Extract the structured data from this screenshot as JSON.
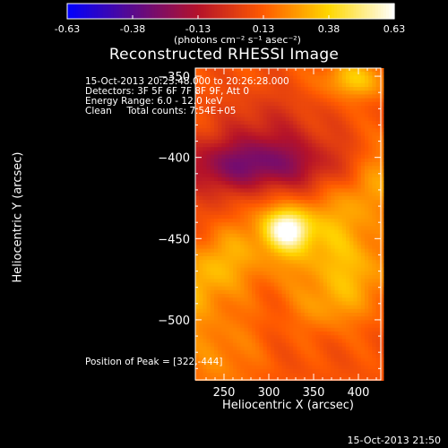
{
  "chart_data": {
    "type": "heatmap",
    "title": "Reconstructed RHESSI Image",
    "xlabel": "Heliocentric X (arcsec)",
    "ylabel": "Heliocentric Y (arcsec)",
    "xlim": [
      218,
      425
    ],
    "ylim": [
      -537,
      -345
    ],
    "x_ticks": [
      250,
      300,
      350,
      400
    ],
    "y_ticks": [
      -350,
      -400,
      -450,
      -500
    ],
    "colorbar": {
      "range": [
        -0.63,
        0.63
      ],
      "ticks": [
        "-0.63",
        "-0.38",
        "-0.13",
        "0.13",
        "0.38",
        "0.63"
      ],
      "units": "(photons cm⁻² s⁻¹ asec⁻²)",
      "colormap": [
        "#0000ff",
        "#5a0a8c",
        "#b4122a",
        "#ff5a00",
        "#ffd700",
        "#ffffff"
      ]
    },
    "annotations": [
      "15-Oct-2013 20:23:48.000 to 20:26:28.000",
      "Detectors: 3F 5F 6F 7F 8F 9F, Att 0",
      "Energy Range: 6.0 - 12.0 keV",
      "Clean     Total counts: 7.54E+05"
    ],
    "peak": {
      "label": "Position of Peak = [322,-444]",
      "x": 322,
      "y": -444,
      "value": 0.63
    }
  },
  "footer": {
    "date_stamp": "15-Oct-2013 21:50"
  }
}
